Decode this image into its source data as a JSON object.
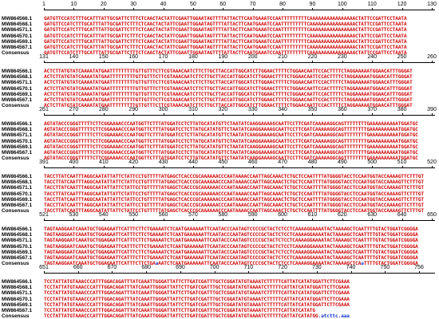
{
  "blocks": [
    {
      "ruler": [
        "1",
        "10",
        "20",
        "30",
        "40",
        "50",
        "60",
        "70",
        "80",
        "90",
        "100",
        "110",
        "120",
        "130"
      ],
      "rows": [
        {
          "label": "MW864566.1",
          "seq": "GATGTTCCATCTTTGCATTTATTGCGATTCTTTCTCAACTACTATTCGAATTGGAATAGTTTTATTACTTCAATGAAATCCAATTTTTTTTTCAAAAAAAAAAAAAAAACTATTCCGATTCCTAATA"
        },
        {
          "label": "MW864568.1",
          "seq": "GATGTTCCATCTTTGCATTTATTGCGATTCTTTCTCAACTACTATTCGAATTGGAATAGTTTTATTACTTCAATGAAATCCAATTTTTTTTTCAAAAAAAAAAAAAAAACTATTCCGATTCCTAATA"
        },
        {
          "label": "MW864571.1",
          "seq": "GATGTTCCATCTTTGCATTTATTGCGATTCTTTCTCAACTACTATTCGAATTGGAATAGTTTTATTACTTCAATGAAATCCAATTTTTTTTTCAAAAAAAAAAAAAAAACTATTCCGATTCCTAATA"
        },
        {
          "label": "MW864570.1",
          "seq": "GATGTTCCATCTTTGCATTTATTGCGATTCTTTCTCAACTACTATTCGAATTGGAATAGTTTTATTACTTCAATGAAATCCAATTTTTTTTTCAAAAAAAAAAAAAAAACTATTCCGATTCCTAATA"
        },
        {
          "label": "MW864569.1",
          "seq": "GATGTTCCATCTTTGCATTTATTGCGATTCTTTCTCAACTACTATTCGAATTGGAATAGTTTTATTACTTCAATGAAATCCAATTTTTTTTTCAAAAAAAAAAAAAAAACTATTCCGATTCCTAATA"
        },
        {
          "label": "MW864567.1",
          "seq": "GATGTTCCATCTTTGCATTTATTGCGATTCTTTCTCAACTACTATTCGAATTGGAATAGTTTTATTACTTCAATGAAATCCAATTTTTTTTTCAAAAAAAAAAAAAAAACTATTCCGATTCCTAATA"
        },
        {
          "label": "Consensus",
          "seq": "GATGTTCCATCTTTGCATTTATTGCGATTCTTTCTCAACTACTATTCGAATTGGAATAGTTTTATTACTTCAATGAAATCCAATTTTTTTTTCAAAAAAAAAAAAAAAACTATTCCGATTCCTAATA"
        }
      ]
    },
    {
      "ruler": [
        "131",
        "140",
        "150",
        "160",
        "170",
        "180",
        "190",
        "200",
        "210",
        "220",
        "230",
        "240",
        "250",
        "260"
      ],
      "rows": [
        {
          "label": "MW864566.1",
          "seq": "ACTCTTATGTATCAAAATATGAATTTTTTTTTGTTGTTTCTTCGTAAACAATCTTCTTGCTTACCATTGGCATCTTGGAACTTTTCTGGAACAATTCCACTTTTCTAGGAAAAATGGAACATTTGGGAT"
        },
        {
          "label": "MW864568.1",
          "seq": "ACTCTTATGTATCAAAATATGAATTTTTTTTTGTTGTTTCTTCGTAAACAATCTTCTTGCTTACCATTGGCATCTTGGAACTTTTCTGGAACAATTCCACTTTTCTAGGAAAAATGGAACATTTGGGAT"
        },
        {
          "label": "MW864571.1",
          "seq": "ACTCTTATGTATCAAAATATGAATTTTTTTTTGTTGTTTCTTCGTAAACAATCTTCTTGCTTACCATTGGCATCTTGGAACTTTTCTGGAACAATTCCACTTTTCTAGGAAAAATGGAACATTTGGGAT"
        },
        {
          "label": "MW864570.1",
          "seq": "ACTCTTATGTATCAAAATATGAATTTTTTTTTGTTGTTTCTTCGTAAACAATCTTCTTGCTTACCATTGGCATCTTGGAACTTTTCTGGAACAATTCCACTTTTCTAGGAAAAATGGAACATTTGGGAT"
        },
        {
          "label": "MW864569.1",
          "seq": "ACTCTTATGTATCAAAATATGAATTTTTTTTTGTTGTTTCTTCGTAAACAATCTTCTTGCTTACCATTGGCATCTTGGAACTTTTCTGGAACAATTCCACTTTTCTAGGAAAAATGGAACATTTGGGAT"
        },
        {
          "label": "MW864567.1",
          "seq": "ACTCTTATGTATCAAAATATGAATTTTTTTTTGTTGTTTCTTCGTAAACAATCTTCTTGCTTACCATTGGCATCTTGGAACTTTTCTGGAACAATTCCACTTTTCTAGGAAAAATGGAACATTTGGGAT"
        },
        {
          "label": "Consensus",
          "seq": "ACTCTTATGTATCAAAATATGAATTTTTTTTTGTTGTTTCTTCGTAAACAATCTTCTTGCTTACCATTGGCATCTTGGAACTTTTCTGGAACAATTCCACTTTTCTAGGAAAAATGGAACATTTGGGAT"
        }
      ]
    },
    {
      "ruler": [
        "261",
        "270",
        "280",
        "290",
        "300",
        "310",
        "320",
        "330",
        "340",
        "350",
        "360",
        "370",
        "380",
        "390"
      ],
      "rows": [
        {
          "label": "MW864566.1",
          "seq": "AGTATACCCGGGTTTTTCTTCGGAAAACCCAATGGTTCTTTATGGATCCTCTTATGCATATGTTCTAATATCAAGGAAAAGCAATTCCTTCGATCAAAAAGGCAGTTTTTTTTGAAAAAAAAAATGGATGC"
        },
        {
          "label": "MW864568.1",
          "seq": "AGTATACCCGGGTTTTTCTTCGGAAAACCCAATGGTTCTTTATGGATCCTCTTATGCATATGTTCTAATATCAAGGAAAAGCAATTCCTTCGATCAAAAAGGCAGTTTTTTTTGAAAAAAAAAATGGATGC"
        },
        {
          "label": "MW864571.1",
          "seq": "AGTATACCCGGGTTTTTCTTCGGAAAACCCAATGGTTCTTTATGGATCCTCTTATGCATATGTTCTAATATCAAGGAAAAGCAATTCCTTCGATCAAAAAGGCAGTTTTTTTTGAAAAAAAAAATGGATGC"
        },
        {
          "label": "MW864570.1",
          "seq": "AGTATACCCGGGTTTTTCTTCGGAAAACCCAATGGTTCTTTATGGATCCTCTTATGCATATGTTCTAATATCAAGGAAAAGCAATTCCTTCGATCAAAAAGGCAGTTTTTTTTGAAAAAAAAAATGGATGC"
        },
        {
          "label": "MW864569.1",
          "seq": "AGTATACCCGGGTTTTTCTTCGGAAAACCCAATGGTTCTTTATGGATCCTCTTATGCATATGTTCTAATATCAAGGAAAAGCAATTCCTTCGATCAAAAAGGCAGTTTTTTTTGAAAAAAAAAATGGATGC"
        },
        {
          "label": "MW864567.1",
          "seq": "AGTATACCCGGGTTTTTCTTCGGAAAACCCAATGGTTCTTTATGGATCCTCTTATGCATATGTTCTAATATCAAGGAAAAGCAATTCCTTCGATCAAAAAGGCAGTTTTTTTTGAAAAAAAAAATGGATGC"
        },
        {
          "label": "Consensus",
          "seq": "AGTATACCCGGGTTTTTCTTCGGAAAACCCAATGGTTCTTTATGGATCCTCTTATGCATATGTTCTAATATCAAGGAAAAGCAATTCCTTCGATCAAAAAGGCAGTTTTTTTTGAAAAAAAAAATGGATGC"
        }
      ]
    },
    {
      "ruler": [
        "391",
        "400",
        "410",
        "420",
        "430",
        "440",
        "450",
        "460",
        "470",
        "480",
        "490",
        "500",
        "510",
        "520"
      ],
      "rows": [
        {
          "label": "MW864566.1",
          "seq": "TACCTTATCAATTTAGGCAATATTATTCTATTCCTGTTTTTATGAGCTCACCCGCAAAAAACCCAATAAAACCAATTAGCAAACTCTGCTCCAATTTTATGGGGTACCTCCAATGGTACCAAAAGTTCTTTGT"
        },
        {
          "label": "MW864568.1",
          "seq": "TACCTTATCAATTTAGGCAATATTATTCTATTCCTGTTTTTATGAGCTCACCCGCAAAAAACCCAATAAAACCAATTAGCAAACTCTGCTCCAATTTTATGGGGTACCTCCAATGGTACCAAAAGTTCTTTGT"
        },
        {
          "label": "MW864571.1",
          "seq": "TACCTTATCAATTTAGGCAATATTATTCTATTCCTGTTTTTATGAGCTCACCCGCAAAAAACCCAATAAAACCAATTAGCAAACTCTGCTCCAATTTTATGGGGTACCTCCAATGGTACCAAAAGTTCTTTGT"
        },
        {
          "label": "MW864570.1",
          "seq": "TACCTTATCAATTTAGGCAATATTATTCTATTCCTGTTTTTATGAGCTCACCCGCAAAAAACCCAATAAAACCAATTAGCAAACTCTGCTCCAATTTTATGGGGTACCTCCAATGGTACCAAAAGTTCTTTGT"
        },
        {
          "label": "MW864569.1",
          "seq": "TACCTTATCAATTTAGGCAATATTATTCTATTCCTGTTTTTATGAGCTCACCCGCAAAAAACCCAATAAAACCAATTAGCAAACTCTGCTCCAATTTTATGGGGTACCTCCAATGGTACCAAAAGTTCTTTGT"
        },
        {
          "label": "MW864567.1",
          "seq": "TACCTTATCAATTTAGGCAATATTATTCTATTCCTGTTTTTATGAGCTCACCCGCAAAAAACCCAATAAAACCAATTAGCAAACTCTGCTCCAATTTTATGGGGTACCTCCAATGGTACCAAAAGTTCTTTGT"
        },
        {
          "label": "Consensus",
          "seq": "TACCTTATCAATTTAGGCAATATTATTCTATTCCTGTTTTTATGAGCTCACCCGCAAAAAACCCAATAAAACCAATTAGCAAACTCTGCTCCAATTTTATGGGGTACCTCCAATGGTACCAAAAGTTCTTTGT"
        }
      ]
    },
    {
      "ruler": [
        "521",
        "530",
        "540",
        "550",
        "560",
        "570",
        "580",
        "590",
        "600",
        "610",
        "620",
        "630",
        "640",
        "650"
      ],
      "rows": [
        {
          "label": "MW864566.1",
          "seq": "TAGTAAGGAATCAAATGCTGGAGAATTCATTTCTTCTGAAAATCTCAATGAAAAAATTCAATACCCAATAGTCCCCGCTACTCTCCTCAAAAGGAAAATACTAAAAGCTCAATTTTGTACTGGATCGGGGA"
        },
        {
          "label": "MW864568.1",
          "seq": "TAGTAAGGAATCAAATGCTGGAGAATTCATTTCTTCTGAAAATCTCAATGAAAAAATTCAATACCCAATAGTCCCCGCTACTCTCCTCAAAAGGAAAATACTAAAAGCTCAATTTTGTACTGGATCGGGGA"
        },
        {
          "label": "MW864571.1",
          "seq": "TAGTAAGGAATCAAATGCTGGAGAATTCATTTCTTCTGAAAATCTCAATGAAAAAATTCAATACCCAATAGTCCCCGCTACTCTCCTCAAAAGGAAAATACTAAAAGCTCAATTTTGTACTGGATCGGGGA"
        },
        {
          "label": "MW864570.1",
          "seq": "TAGTAAGGAATCAAATGCTGGAGAATTCATTTCTTCTGAAAATCTCAATGAAAAAATTCAATACCCAATAGTCCCCGCTACTCTCCTCAAAAGGAAAATACTAAAAGCTCAATTTTGTACTGGATCGGGGA"
        },
        {
          "label": "MW864569.1",
          "seq": "TAGTAAGGAATCAAATGCTGGAGAATTCATTTCTTCTGAAAATCTCAATGAAAAAATTCAATACCCAATAGTCCCCGCTACTCTCCTCAAAAGGAAAATACTAAAAGCTCAATTTTGTACTGGATCGGGGA"
        },
        {
          "label": "MW864567.1",
          "seq": "TAGTAAGGAATCAAATGCTGGAGAATTCATTTCTTCTGAAAATCTCAATGAAAAAATTCAATACCCAATAGTCCCCGCTACTCTCCTCAAAAGGAAAATACTAAAAGCTCAATTTTGTACTGGATCGGGGA"
        },
        {
          "label": "Consensus",
          "seq": "TAGTAAGGAATCAAATGCTGGAGAATTCATTTCTTCTGAaAATCTCAATGAAAAAATTCAATACCCAATAGTCCCCGCTACTCTCCTCAAAAGGAAAATACTAAAAGCTCAaTTTTGTACTGGATCGGGGA"
        }
      ]
    },
    {
      "ruler": [
        "651",
        "660",
        "670",
        "680",
        "690",
        "700",
        "710",
        "720",
        "730",
        "740",
        "750",
        "756"
      ],
      "rows": [
        {
          "label": "MW864566.1",
          "seq": "TCCTATTATGTAAACCCATTTGGACAGATTTATCAAATTGGGATTATTCTTGATCGATTTGCTCGGATATGTAAAATCTTTTTCATTATCATATGGATTCTTCGAAA"
        },
        {
          "label": "MW864568.1",
          "seq": "TCCTATTATGTAAACCCATTTGGACAGATTTATCAAATTGGGATTATTCTTGATCGATTTGCTCGGATATGTAAAATCTTTTTCATTATCATATGGATTCTTCGAAA"
        },
        {
          "label": "MW864571.1",
          "seq": "TCCTATTATGTAAACCCATTTGGACAGATTTATCAAATTGGGATTATTCTTGATCGATTTGCTCGGATATGTAAAATCTTTTTCATTATCATATGGATTCTTCGAAA"
        },
        {
          "label": "MW864570.1",
          "seq": "TCCTATTATGTAAACCCATTTGGACAGATTTATCAAATTGGGATTATTCTTGATCGATTTGCTCGGATATGTAAAATCTTTTTCATTATCATATGGATTCTTCGAAA"
        },
        {
          "label": "MW864569.1",
          "seq": "TCCTATTATGTAAACCCATTTGGACAGATTTATCAAATTGGGATTATTCTTGATCGATTTGCTCGGATATGTAAAATCTTTTTCATTATCATATGGATTCTTCGAAA"
        },
        {
          "label": "MW864567.1",
          "seq": "TCCTATTATGTAAACCCATTTGGACAGATTTATCAAATTGGGATTATTCTTGATCGATTTGCTCGGATATGTAAAATCTTTTTCATTATCATATG"
        },
        {
          "label": "Consensus",
          "seq": "TCCTATTATGTAAACCCATTTGGACAGATTTATCAAATTGGGATTATTCTTGATCGATTTGCTCGGATATGTAAAATCTTTTTCATTATCATATGG.atcttc.aaa"
        }
      ]
    }
  ],
  "colors": {
    "identical": "#d00000",
    "variant": "#1a3ad0",
    "text": "#000000"
  }
}
